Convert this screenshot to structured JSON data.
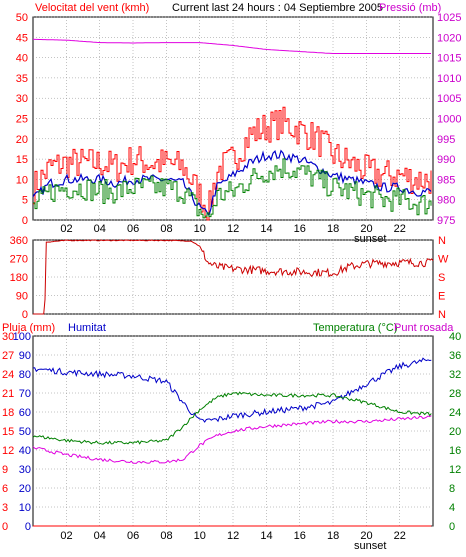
{
  "header": {
    "left_title": "Velocitat del vent (kmh)",
    "center_title": "Current last 24 hours : 04 Septiembre 2005",
    "right_title": "Pressió (mb)"
  },
  "colors": {
    "frame": "#000000",
    "grid": "#888888",
    "red": "#ff0000",
    "green": "#008000",
    "blue": "#0000c8",
    "magenta": "#e000e0",
    "darkred": "#cc0000",
    "pressure_axis": "#cc00cc",
    "humidity_label": "#0000c8",
    "temp_label": "#008000",
    "dew_label": "#cc00cc"
  },
  "x_ticks": [
    "02",
    "04",
    "06",
    "08",
    "10",
    "12",
    "14",
    "16",
    "18",
    "20",
    "22"
  ],
  "sunset_label": "sunset",
  "chart_data": [
    {
      "type": "line",
      "title": "Velocitat del vent (kmh) / Pressió (mb)",
      "ylabel": "Velocitat del vent (kmh)",
      "y2label": "Pressió (mb)",
      "ylim": [
        0,
        50
      ],
      "y2lim": [
        975,
        1025
      ],
      "yticks": [
        "0",
        "5",
        "10",
        "15",
        "20",
        "25",
        "30",
        "35",
        "40",
        "45",
        "50"
      ],
      "y2ticks": [
        "975",
        "980",
        "985",
        "990",
        "995",
        "1000",
        "1005",
        "1010",
        "1015",
        "1020",
        "1025"
      ],
      "xlim": [
        0,
        24
      ],
      "grid": true,
      "series": [
        {
          "name": "Gust",
          "color": "red",
          "x": [
            0,
            1,
            2,
            3,
            4,
            5,
            6,
            7,
            8,
            9,
            10,
            10.5,
            11,
            12,
            13,
            14,
            15,
            16,
            17,
            18,
            19,
            20,
            21,
            22,
            23,
            24
          ],
          "y": [
            8,
            13,
            14,
            14,
            14,
            13,
            15,
            14,
            14,
            13,
            6,
            2,
            12,
            15,
            21,
            23,
            24,
            22,
            20,
            16,
            14,
            12,
            11,
            11,
            10,
            10
          ]
        },
        {
          "name": "Average",
          "color": "blue",
          "x": [
            0,
            1,
            2,
            3,
            4,
            5,
            6,
            7,
            8,
            9,
            10,
            10.5,
            11,
            12,
            13,
            14,
            15,
            16,
            17,
            18,
            19,
            20,
            21,
            22,
            23,
            24
          ],
          "y": [
            5,
            9,
            10,
            10,
            10,
            9,
            10,
            10,
            10,
            9,
            3,
            1,
            8,
            11,
            14,
            16,
            16,
            15,
            13,
            11,
            10,
            9,
            8,
            8,
            7,
            7
          ]
        },
        {
          "name": "Wind",
          "color": "green",
          "x": [
            0,
            1,
            2,
            3,
            4,
            5,
            6,
            7,
            8,
            9,
            10,
            10.5,
            11,
            12,
            13,
            14,
            15,
            16,
            17,
            18,
            19,
            20,
            21,
            22,
            23,
            24
          ],
          "y": [
            3,
            7,
            8,
            8,
            7,
            7,
            8,
            8,
            8,
            7,
            2,
            0,
            6,
            7,
            10,
            12,
            13,
            12,
            10,
            8,
            7,
            6,
            5,
            5,
            4,
            4
          ]
        },
        {
          "name": "Pressure",
          "color": "magenta",
          "axis": "right",
          "x": [
            0,
            2,
            4,
            6,
            8,
            10,
            12,
            14,
            16,
            18,
            20,
            22,
            24
          ],
          "y": [
            1019.5,
            1019.3,
            1018.7,
            1018.6,
            1018.7,
            1018.7,
            1018.0,
            1017.0,
            1016.5,
            1016.0,
            1016.0,
            1016.0,
            1016.0
          ]
        }
      ]
    },
    {
      "type": "scatter",
      "title": "",
      "ylim": [
        0,
        360
      ],
      "yticks": [
        "0",
        "90",
        "180",
        "270",
        "360"
      ],
      "y2ticks": [
        "N",
        "E",
        "S",
        "W",
        "N"
      ],
      "xlim": [
        0,
        24
      ],
      "grid": true,
      "series": [
        {
          "name": "Direction",
          "color": "darkred",
          "x": [
            0,
            0.7,
            0.8,
            2,
            4,
            6,
            8,
            9.5,
            10,
            10.5,
            11,
            12,
            14,
            16,
            18,
            19,
            20,
            22,
            24
          ],
          "y": [
            0,
            0,
            350,
            358,
            358,
            358,
            358,
            355,
            330,
            250,
            230,
            220,
            210,
            205,
            200,
            230,
            245,
            250,
            250
          ]
        }
      ]
    },
    {
      "type": "line",
      "title": "Pluja (mm) / Humitat / Temperatura (°C) / Punt rosada",
      "ylabel": "Pluja (mm)",
      "y2label": "Temperatura (°C)",
      "ylim": [
        0,
        100
      ],
      "y2lim": [
        0,
        40
      ],
      "yticks_left_rain": [
        "0",
        "3",
        "6",
        "9",
        "12",
        "15",
        "18",
        "21",
        "24",
        "27",
        "30"
      ],
      "yticks_left_hum": [
        "0",
        "10",
        "20",
        "30",
        "40",
        "50",
        "60",
        "70",
        "80",
        "90",
        "100"
      ],
      "yticks_right": [
        "0",
        "4",
        "8",
        "12",
        "16",
        "20",
        "24",
        "28",
        "32",
        "36",
        "40"
      ],
      "labels": {
        "rain": "Pluja (mm)",
        "humidity": "Humitat",
        "temperature": "Temperatura (°C)",
        "dewpoint": "Punt rosada"
      },
      "xlim": [
        0,
        24
      ],
      "grid": true,
      "series": [
        {
          "name": "Humitat",
          "color": "blue",
          "x": [
            0,
            2,
            4,
            6,
            8,
            9,
            10,
            11,
            12,
            14,
            16,
            18,
            20,
            22,
            24
          ],
          "y": [
            83,
            81,
            80,
            79,
            76,
            65,
            55,
            56,
            58,
            60,
            62,
            65,
            75,
            84,
            88
          ]
        },
        {
          "name": "Temperatura",
          "color": "green",
          "axis": "right",
          "x": [
            0,
            2,
            4,
            6,
            8,
            9,
            10,
            11,
            12,
            14,
            16,
            18,
            20,
            22,
            24
          ],
          "y": [
            19,
            18,
            17.5,
            17.5,
            18,
            21,
            24.5,
            27,
            28,
            27.5,
            27.5,
            27.5,
            26,
            24,
            23.5
          ]
        },
        {
          "name": "Punt rosada",
          "color": "magenta",
          "axis": "right",
          "x": [
            0,
            2,
            4,
            6,
            8,
            9,
            10,
            11,
            12,
            14,
            16,
            18,
            20,
            22,
            24
          ],
          "y": [
            16.5,
            15,
            14,
            13.5,
            13.5,
            14,
            17,
            19,
            20,
            21,
            21.5,
            22,
            22,
            22.5,
            23
          ]
        },
        {
          "name": "Pluja",
          "color": "red",
          "x": [
            0,
            24
          ],
          "y": [
            0,
            0
          ]
        }
      ]
    }
  ]
}
